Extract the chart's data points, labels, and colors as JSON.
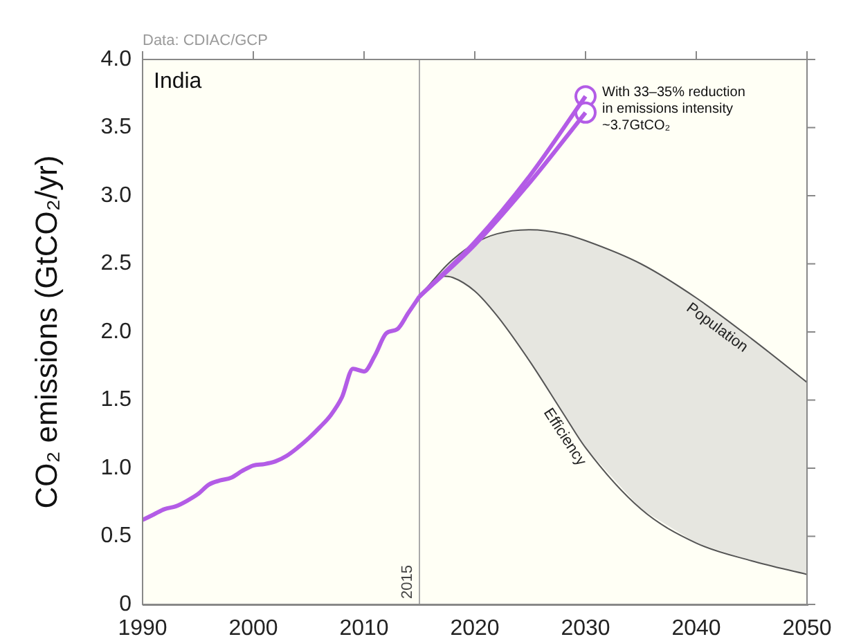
{
  "chart_data": {
    "type": "line",
    "title": "India",
    "ylabel": "CO₂ emissions (GtCO₂/yr)",
    "annotations": [
      "Data: CDIAC/GCP",
      {
        "text": "With 33–35% reduction\nin emissions intensity\n~3.7GtCO₂",
        "x": 2030,
        "y": 3.73
      }
    ],
    "series": [
      {
        "color": "#b35ce6",
        "x": [
          1990,
          1991,
          1992,
          1993,
          1994,
          1995,
          1996,
          1997,
          1998,
          1999,
          2000,
          2001,
          2002,
          2003,
          2004,
          2005,
          2006,
          2007,
          2008,
          2009,
          2010,
          2011,
          2012,
          2013,
          2014,
          2015
        ],
        "values": [
          0.62,
          0.66,
          0.7,
          0.72,
          0.76,
          0.81,
          0.88,
          0.91,
          0.93,
          0.98,
          1.02,
          1.03,
          1.05,
          1.09,
          1.15,
          1.22,
          1.3,
          1.39,
          1.52,
          1.73,
          1.71,
          1.83,
          1.99,
          2.02,
          2.14,
          2.26
        ]
      },
      {
        "color": "#b35ce6",
        "x": [
          2015,
          2020,
          2025,
          2030
        ],
        "values": [
          2.26,
          2.66,
          3.15,
          3.73
        ]
      },
      {
        "color": "#b35ce6",
        "x": [
          2015,
          2020,
          2025,
          2030
        ],
        "values": [
          2.26,
          2.64,
          3.1,
          3.61
        ]
      },
      {
        "type": "scatter",
        "color": "#b35ce6",
        "marker": "circle",
        "x": [
          2030,
          2030
        ],
        "values": [
          3.73,
          3.61
        ]
      },
      {
        "name": "Population",
        "color": "#555555",
        "x": [
          2015,
          2017,
          2018,
          2020,
          2022,
          2025,
          2028,
          2030,
          2035,
          2040,
          2045,
          2050
        ],
        "values": [
          2.26,
          2.45,
          2.53,
          2.65,
          2.72,
          2.75,
          2.72,
          2.67,
          2.5,
          2.25,
          1.95,
          1.63
        ]
      },
      {
        "name": "Efficiency",
        "color": "#555555",
        "x": [
          2015,
          2017,
          2018,
          2020,
          2022,
          2025,
          2028,
          2030,
          2035,
          2040,
          2045,
          2050
        ],
        "values": [
          2.26,
          2.41,
          2.4,
          2.3,
          2.12,
          1.78,
          1.4,
          1.15,
          0.7,
          0.45,
          0.32,
          0.22
        ],
        "lower": [
          2.26,
          2.41,
          2.4,
          2.3,
          2.12,
          1.78,
          1.4,
          1.15,
          0.7,
          0.45,
          0.32,
          0.22
        ],
        "upper": [
          2.26,
          2.45,
          2.53,
          2.65,
          2.72,
          2.75,
          2.72,
          2.67,
          2.5,
          2.25,
          1.95,
          1.63
        ]
      }
    ],
    "ref_lines": [
      {
        "axis": "x",
        "value": 2015,
        "label": "2015",
        "color": "#aaaaaa"
      }
    ],
    "xlim": [
      1990,
      2050
    ],
    "xticks": [
      1990,
      2000,
      2010,
      2020,
      2030,
      2040,
      2050
    ],
    "ylim": [
      0,
      4
    ],
    "yticks": [
      0,
      0.5,
      {
        "value": 1,
        "label": "1.0"
      },
      1.5,
      {
        "value": 2,
        "label": "2.0"
      },
      2.5,
      {
        "value": 3,
        "label": "3.0"
      },
      3.5,
      {
        "value": 4,
        "label": "4.0"
      }
    ],
    "grid": false,
    "legend": false
  }
}
